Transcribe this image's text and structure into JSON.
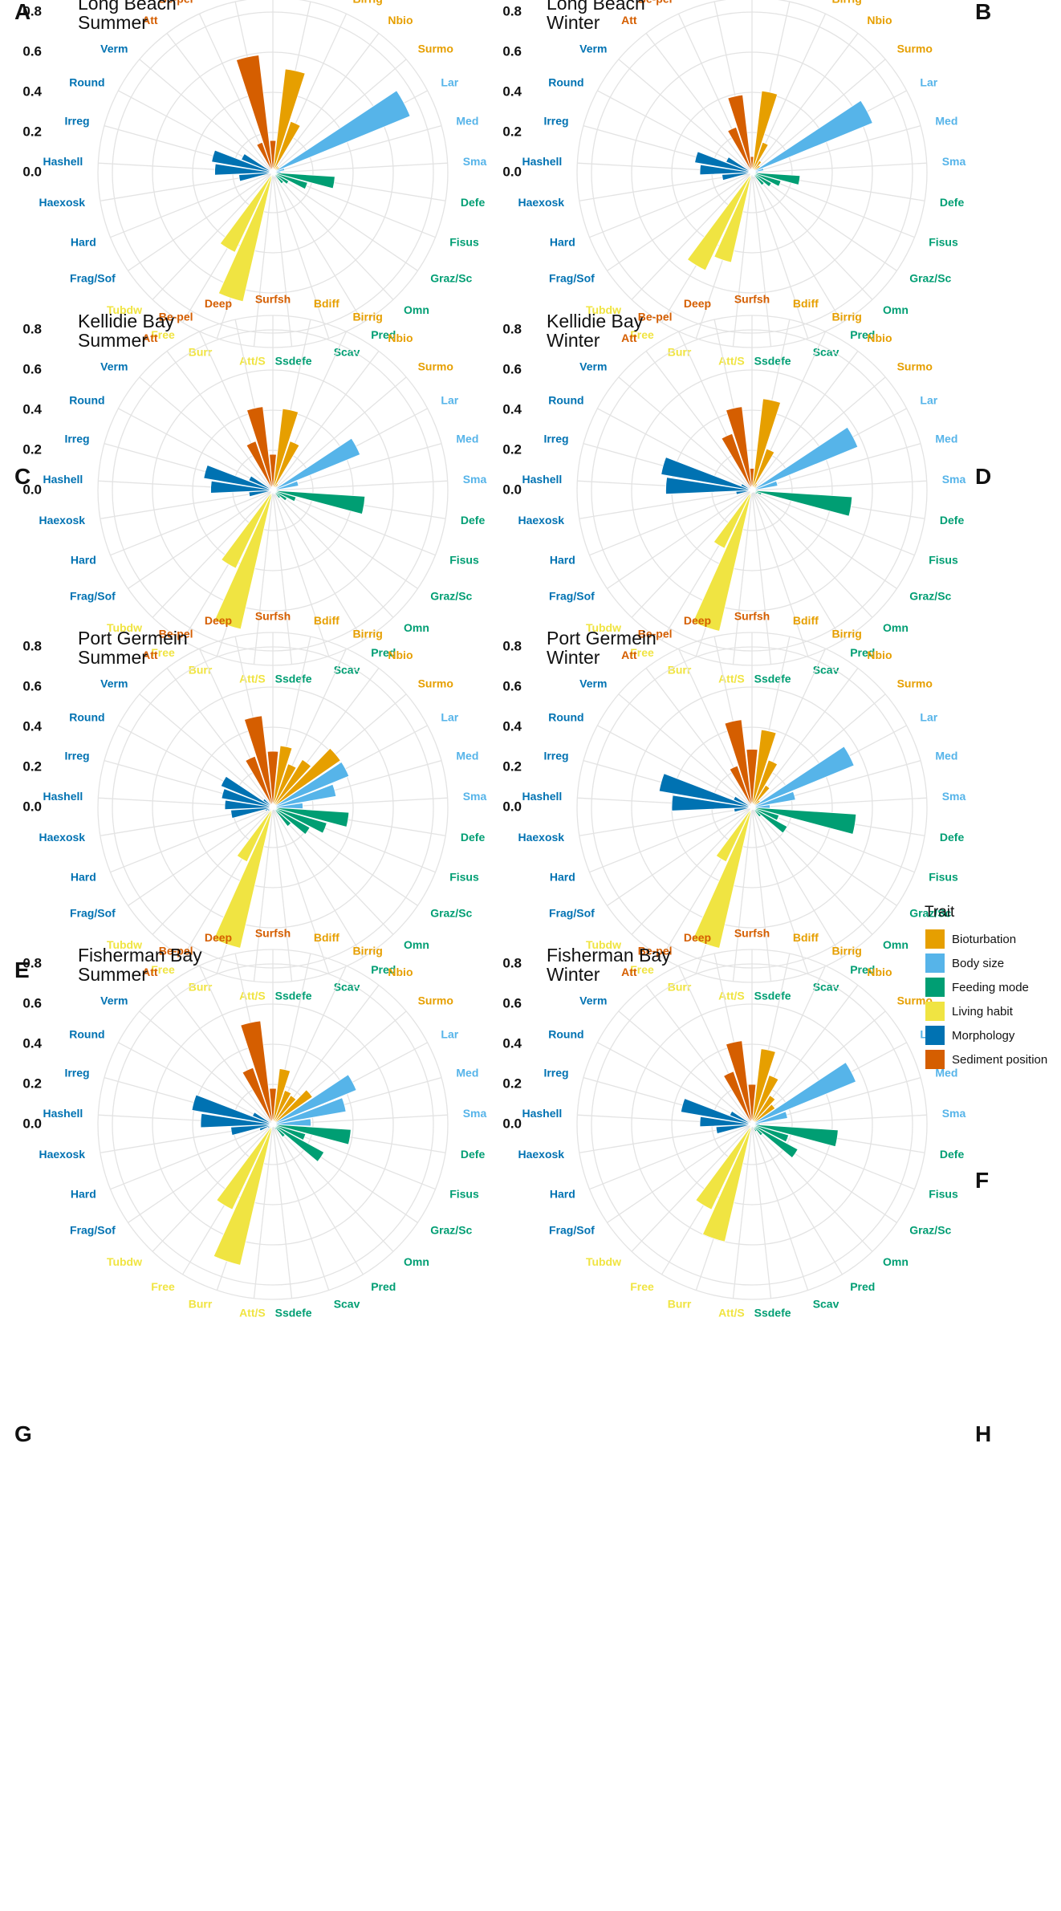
{
  "chart_data": {
    "type": "polar-bar",
    "categories": [
      "Surfsh",
      "Bdiff",
      "Birrig",
      "Nbio",
      "Surmo",
      "Lar",
      "Med",
      "Sma",
      "Defe",
      "Fisus",
      "Graz/Sc",
      "Omn",
      "Pred",
      "Scav",
      "Ssdefe",
      "Att/S",
      "Burr",
      "Free",
      "Tubdw",
      "Frag/Sof",
      "Hard",
      "Haexosk",
      "Hashell",
      "Irreg",
      "Round",
      "Verm",
      "Att",
      "Be-pel",
      "Deep"
    ],
    "category_traits": [
      "Sediment position",
      "Bioturbation",
      "Bioturbation",
      "Bioturbation",
      "Bioturbation",
      "Body size",
      "Body size",
      "Body size",
      "Feeding mode",
      "Feeding mode",
      "Feeding mode",
      "Feeding mode",
      "Feeding mode",
      "Feeding mode",
      "Feeding mode",
      "Living habit",
      "Living habit",
      "Living habit",
      "Living habit",
      "Morphology",
      "Morphology",
      "Morphology",
      "Morphology",
      "Morphology",
      "Morphology",
      "Morphology",
      "Sediment position",
      "Sediment position",
      "Sediment position"
    ],
    "yticks": [
      "0.0",
      "0.2",
      "0.4",
      "0.6",
      "0.8"
    ],
    "ylim": [
      0,
      0.9
    ],
    "legend": {
      "title": "Trait",
      "entries": [
        {
          "name": "Bioturbation",
          "color": "#E69F00"
        },
        {
          "name": "Body size",
          "color": "#56B4E9"
        },
        {
          "name": "Feeding mode",
          "color": "#009E73"
        },
        {
          "name": "Living habit",
          "color": "#F0E442"
        },
        {
          "name": "Morphology",
          "color": "#0072B2"
        },
        {
          "name": "Sediment position",
          "color": "#D55E00"
        }
      ]
    },
    "panels": [
      {
        "label": "A",
        "site": "Long Beach",
        "season": "Summer",
        "values": [
          0.16,
          0.52,
          0.27,
          0.04,
          0.04,
          0.74,
          0.06,
          0.04,
          0.31,
          0.18,
          0.09,
          0.07,
          0.01,
          0.02,
          0.01,
          0.01,
          0.66,
          0.44,
          0.01,
          0.01,
          0.01,
          0.17,
          0.29,
          0.31,
          0.17,
          0.02,
          0.01,
          0.16,
          0.59
        ]
      },
      {
        "label": "B",
        "site": "Long Beach",
        "season": "Winter",
        "values": [
          0.08,
          0.41,
          0.16,
          0.07,
          0.05,
          0.65,
          0.06,
          0.03,
          0.24,
          0.15,
          0.11,
          0.08,
          0.02,
          0.02,
          0.01,
          0.01,
          0.46,
          0.54,
          0.01,
          0.01,
          0.01,
          0.15,
          0.26,
          0.29,
          0.14,
          0.02,
          0.01,
          0.24,
          0.39
        ]
      },
      {
        "label": "C",
        "site": "Kellidie Bay",
        "season": "Summer",
        "values": [
          0.18,
          0.41,
          0.26,
          0.04,
          0.02,
          0.47,
          0.13,
          0.02,
          0.46,
          0.12,
          0.08,
          0.05,
          0.01,
          0.02,
          0.01,
          0.01,
          0.71,
          0.43,
          0.01,
          0.01,
          0.01,
          0.12,
          0.31,
          0.35,
          0.13,
          0.01,
          0.01,
          0.26,
          0.42
        ]
      },
      {
        "label": "D",
        "site": "Kellidie Bay",
        "season": "Winter",
        "values": [
          0.11,
          0.46,
          0.22,
          0.04,
          0.03,
          0.57,
          0.13,
          0.02,
          0.5,
          0.05,
          0.03,
          0.01,
          0.01,
          0.01,
          0.01,
          0.01,
          0.72,
          0.32,
          0.01,
          0.01,
          0.01,
          0.08,
          0.43,
          0.46,
          0.06,
          0.01,
          0.01,
          0.3,
          0.42
        ]
      },
      {
        "label": "E",
        "site": "Port Germein",
        "season": "Summer",
        "values": [
          0.28,
          0.31,
          0.23,
          0.28,
          0.41,
          0.41,
          0.32,
          0.15,
          0.38,
          0.28,
          0.21,
          0.12,
          0.01,
          0.01,
          0.01,
          0.01,
          0.72,
          0.3,
          0.01,
          0.03,
          0.04,
          0.21,
          0.24,
          0.26,
          0.28,
          0.06,
          0.02,
          0.27,
          0.46
        ]
      },
      {
        "label": "F",
        "site": "Port Germein",
        "season": "Winter",
        "values": [
          0.29,
          0.39,
          0.25,
          0.13,
          0.05,
          0.55,
          0.22,
          0.09,
          0.52,
          0.14,
          0.2,
          0.06,
          0.01,
          0.01,
          0.01,
          0.01,
          0.72,
          0.3,
          0.01,
          0.01,
          0.01,
          0.09,
          0.4,
          0.47,
          0.1,
          0.01,
          0.01,
          0.22,
          0.44
        ]
      },
      {
        "label": "G",
        "site": "Fisherman Bay",
        "season": "Summer",
        "values": [
          0.18,
          0.28,
          0.18,
          0.17,
          0.24,
          0.45,
          0.37,
          0.19,
          0.39,
          0.17,
          0.29,
          0.08,
          0.03,
          0.01,
          0.01,
          0.01,
          0.72,
          0.47,
          0.01,
          0.03,
          0.07,
          0.21,
          0.36,
          0.41,
          0.11,
          0.01,
          0.01,
          0.3,
          0.52
        ]
      },
      {
        "label": "H",
        "site": "Fisherman Bay",
        "season": "Winter",
        "values": [
          0.2,
          0.38,
          0.26,
          0.17,
          0.14,
          0.56,
          0.18,
          0.04,
          0.43,
          0.19,
          0.26,
          0.07,
          0.04,
          0.01,
          0.01,
          0.01,
          0.6,
          0.47,
          0.01,
          0.01,
          0.01,
          0.18,
          0.26,
          0.36,
          0.12,
          0.01,
          0.01,
          0.28,
          0.42
        ]
      }
    ]
  }
}
